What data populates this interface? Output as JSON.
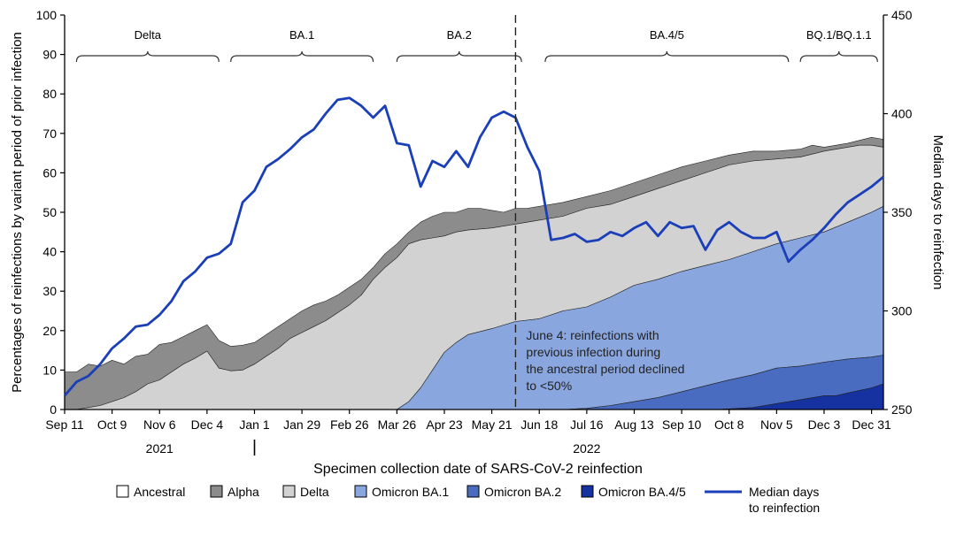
{
  "chart_data": {
    "type": "area",
    "xlabel": "Specimen collection date of SARS-CoV-2 reinfection",
    "ylabel": "Percentages of reinfections by variant period of prior infection",
    "y2label": "Median days to reinfection",
    "ylim": [
      0,
      100
    ],
    "y2lim": [
      250,
      450
    ],
    "yticks": [
      0,
      10,
      20,
      30,
      40,
      50,
      60,
      70,
      80,
      90,
      100
    ],
    "y2ticks": [
      250,
      300,
      350,
      400,
      450
    ],
    "xticks": [
      "Sep 11",
      "Oct 9",
      "Nov 6",
      "Dec 4",
      "Jan 1",
      "Jan 29",
      "Feb 26",
      "Mar 26",
      "Apr 23",
      "May 21",
      "Jun 18",
      "Jul 16",
      "Aug 13",
      "Sep 10",
      "Oct 8",
      "Nov 5",
      "Dec 3",
      "Dec 31"
    ],
    "years": [
      "2021",
      "2022"
    ],
    "periods": [
      "Delta",
      "BA.1",
      "BA.2",
      "BA.4/5",
      "BQ.1/BQ.1.1"
    ],
    "annotation": {
      "lines": [
        "June 4: reinfections with",
        "previous infection during",
        "the ancestral period declined",
        "to <50%"
      ],
      "week": 38
    },
    "legend": {
      "items": [
        {
          "label": "Ancestral",
          "color": "#ffffff"
        },
        {
          "label": "Alpha",
          "color": "#8c8c8c"
        },
        {
          "label": "Delta",
          "color": "#d2d2d2"
        },
        {
          "label": "Omicron BA.1",
          "color": "#8aa6de"
        },
        {
          "label": "Omicron BA.2",
          "color": "#4a6cc0"
        },
        {
          "label": "Omicron BA.4/5",
          "color": "#1532a0"
        }
      ],
      "line_label": [
        "Median days",
        "to reinfection"
      ],
      "line_color": "#1a3fb8"
    },
    "x_weeks": 69,
    "cumulative": {
      "ba45": [
        [
          0,
          0
        ],
        [
          44,
          0
        ],
        [
          55,
          0
        ],
        [
          58,
          0.5
        ],
        [
          60,
          1.5
        ],
        [
          62,
          2.5
        ],
        [
          64,
          3.5
        ],
        [
          65,
          3.5
        ],
        [
          66,
          4.2
        ],
        [
          68,
          5.5
        ],
        [
          69,
          6.5
        ]
      ],
      "ba2": [
        [
          0,
          0
        ],
        [
          42,
          0
        ],
        [
          44,
          0.3
        ],
        [
          46,
          1
        ],
        [
          48,
          2
        ],
        [
          50,
          3
        ],
        [
          52,
          4.5
        ],
        [
          54,
          6
        ],
        [
          56,
          7.5
        ],
        [
          58,
          8.8
        ],
        [
          60,
          10.5
        ],
        [
          62,
          11
        ],
        [
          64,
          12
        ],
        [
          66,
          12.8
        ],
        [
          68,
          13.3
        ],
        [
          69,
          13.8
        ]
      ],
      "ba1": [
        [
          0,
          0
        ],
        [
          28,
          0
        ],
        [
          29,
          2
        ],
        [
          30,
          5.5
        ],
        [
          31,
          10
        ],
        [
          32,
          14.5
        ],
        [
          33,
          17
        ],
        [
          34,
          19
        ],
        [
          36,
          20.5
        ],
        [
          38,
          22.3
        ],
        [
          40,
          23
        ],
        [
          41,
          24
        ],
        [
          42,
          25
        ],
        [
          44,
          26
        ],
        [
          46,
          28.5
        ],
        [
          48,
          31.5
        ],
        [
          50,
          33
        ],
        [
          52,
          35
        ],
        [
          54,
          36.5
        ],
        [
          56,
          38
        ],
        [
          58,
          40
        ],
        [
          60,
          42
        ],
        [
          62,
          43.5
        ],
        [
          64,
          45
        ],
        [
          66,
          47.5
        ],
        [
          68,
          50
        ],
        [
          69,
          51.5
        ],
        [
          69,
          51
        ]
      ],
      "delta": [
        [
          0,
          0
        ],
        [
          1,
          0
        ],
        [
          2,
          0.5
        ],
        [
          3,
          1
        ],
        [
          4,
          2
        ],
        [
          5,
          3
        ],
        [
          6,
          4.5
        ],
        [
          7,
          6.5
        ],
        [
          8,
          7.5
        ],
        [
          9,
          9.5
        ],
        [
          10,
          11.5
        ],
        [
          11,
          13
        ],
        [
          12,
          14.8
        ],
        [
          13,
          10.5
        ],
        [
          14,
          9.8
        ],
        [
          15,
          10
        ],
        [
          16,
          11.5
        ],
        [
          17,
          13.5
        ],
        [
          18,
          15.5
        ],
        [
          19,
          18
        ],
        [
          20,
          19.5
        ],
        [
          21,
          21
        ],
        [
          22,
          22.5
        ],
        [
          23,
          24.5
        ],
        [
          24,
          26.5
        ],
        [
          25,
          29
        ],
        [
          26,
          33
        ],
        [
          27,
          36
        ],
        [
          28,
          38.5
        ],
        [
          29,
          42
        ],
        [
          30,
          43
        ],
        [
          31,
          43.5
        ],
        [
          32,
          44
        ],
        [
          33,
          45
        ],
        [
          34,
          45.5
        ],
        [
          36,
          46
        ],
        [
          38,
          47
        ],
        [
          40,
          48
        ],
        [
          42,
          49
        ],
        [
          44,
          51
        ],
        [
          46,
          52
        ],
        [
          48,
          54
        ],
        [
          50,
          56
        ],
        [
          52,
          58
        ],
        [
          54,
          60
        ],
        [
          56,
          62
        ],
        [
          58,
          63
        ],
        [
          60,
          63.5
        ],
        [
          62,
          64
        ],
        [
          64,
          65.5
        ],
        [
          66,
          66.5
        ],
        [
          67,
          67
        ],
        [
          68,
          67
        ],
        [
          69,
          66.5
        ]
      ],
      "alpha": [
        [
          0,
          9.5
        ],
        [
          1,
          9.5
        ],
        [
          2,
          11.5
        ],
        [
          3,
          11
        ],
        [
          4,
          12.5
        ],
        [
          5,
          11.5
        ],
        [
          6,
          13.5
        ],
        [
          7,
          14
        ],
        [
          8,
          16.5
        ],
        [
          9,
          17
        ],
        [
          10,
          18.5
        ],
        [
          11,
          20
        ],
        [
          12,
          21.5
        ],
        [
          13,
          17.5
        ],
        [
          14,
          16
        ],
        [
          15,
          16.3
        ],
        [
          16,
          17
        ],
        [
          17,
          19
        ],
        [
          18,
          21
        ],
        [
          19,
          23
        ],
        [
          20,
          25
        ],
        [
          21,
          26.5
        ],
        [
          22,
          27.5
        ],
        [
          23,
          29
        ],
        [
          24,
          31
        ],
        [
          25,
          33
        ],
        [
          26,
          36
        ],
        [
          27,
          39.5
        ],
        [
          28,
          42
        ],
        [
          29,
          45
        ],
        [
          30,
          47.5
        ],
        [
          31,
          49
        ],
        [
          32,
          50
        ],
        [
          33,
          50
        ],
        [
          34,
          51
        ],
        [
          35,
          51
        ],
        [
          36,
          50.5
        ],
        [
          37,
          50
        ],
        [
          38,
          51
        ],
        [
          39,
          51
        ],
        [
          40,
          51.5
        ],
        [
          42,
          52.5
        ],
        [
          44,
          54
        ],
        [
          46,
          55.5
        ],
        [
          48,
          57.5
        ],
        [
          50,
          59.5
        ],
        [
          52,
          61.5
        ],
        [
          54,
          63
        ],
        [
          56,
          64.5
        ],
        [
          58,
          65.5
        ],
        [
          60,
          65.5
        ],
        [
          62,
          66
        ],
        [
          63,
          67
        ],
        [
          64,
          66.5
        ],
        [
          66,
          67.5
        ],
        [
          68,
          69
        ],
        [
          69,
          68.5
        ],
        [
          69,
          68
        ]
      ],
      "total": [
        [
          0,
          10
        ],
        [
          11,
          21
        ],
        [
          12,
          22
        ],
        [
          13,
          18
        ],
        [
          14,
          16.5
        ],
        [
          69,
          67
        ]
      ]
    },
    "median_days": [
      [
        0,
        257
      ],
      [
        1,
        264
      ],
      [
        2,
        267
      ],
      [
        3,
        273
      ],
      [
        4,
        281
      ],
      [
        5,
        286
      ],
      [
        6,
        292
      ],
      [
        7,
        293
      ],
      [
        8,
        298
      ],
      [
        9,
        305
      ],
      [
        10,
        315
      ],
      [
        11,
        320
      ],
      [
        12,
        327
      ],
      [
        13,
        329
      ],
      [
        14,
        334
      ],
      [
        15,
        355
      ],
      [
        16,
        361
      ],
      [
        17,
        373
      ],
      [
        18,
        377
      ],
      [
        19,
        382
      ],
      [
        20,
        388
      ],
      [
        21,
        392
      ],
      [
        22,
        400
      ],
      [
        23,
        407
      ],
      [
        24,
        408
      ],
      [
        25,
        404
      ],
      [
        26,
        398
      ],
      [
        27,
        404
      ],
      [
        28,
        385
      ],
      [
        29,
        384
      ],
      [
        30,
        363
      ],
      [
        31,
        376
      ],
      [
        32,
        373
      ],
      [
        33,
        381
      ],
      [
        34,
        373
      ],
      [
        35,
        388
      ],
      [
        36,
        398
      ],
      [
        37,
        401
      ],
      [
        38,
        398
      ],
      [
        39,
        383
      ],
      [
        40,
        371
      ],
      [
        41,
        336
      ],
      [
        42,
        337
      ],
      [
        43,
        339
      ],
      [
        44,
        335
      ],
      [
        45,
        336
      ],
      [
        46,
        340
      ],
      [
        47,
        338
      ],
      [
        48,
        342
      ],
      [
        49,
        345
      ],
      [
        50,
        338
      ],
      [
        51,
        345
      ],
      [
        52,
        342
      ],
      [
        53,
        343
      ],
      [
        54,
        331
      ],
      [
        55,
        341
      ],
      [
        56,
        345
      ],
      [
        57,
        340
      ],
      [
        58,
        337
      ],
      [
        59,
        337
      ],
      [
        60,
        340
      ],
      [
        61,
        325
      ],
      [
        62,
        331
      ],
      [
        63,
        336
      ],
      [
        64,
        342
      ],
      [
        65,
        349
      ],
      [
        66,
        355
      ],
      [
        67,
        359
      ],
      [
        68,
        363
      ],
      [
        69,
        368
      ]
    ]
  }
}
